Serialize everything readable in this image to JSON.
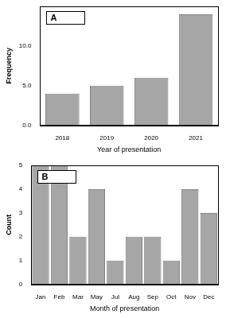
{
  "chart_data": [
    {
      "type": "bar",
      "title": "A",
      "categories": [
        "2018",
        "2019",
        "2020",
        "2021"
      ],
      "values": [
        4,
        5,
        6,
        14
      ],
      "color": "#a6a6a6",
      "x_label": "Year of presentation",
      "y_label": "Frequency",
      "ylim": [
        0,
        15
      ],
      "yticks": [
        {
          "value": 0,
          "label": "0.0"
        },
        {
          "value": 5,
          "label": "5.0"
        },
        {
          "value": 10,
          "label": "10.0"
        }
      ],
      "grid": false
    },
    {
      "type": "bar",
      "title": "B",
      "categories": [
        "Jan",
        "Feb",
        "Mar",
        "May",
        "Jul",
        "Aug",
        "Sep",
        "Oct",
        "Nov",
        "Dec"
      ],
      "values": [
        5,
        5,
        2,
        4,
        1,
        2,
        2,
        1,
        4,
        3
      ],
      "color": "#a6a6a6",
      "x_label": "Month of presentation",
      "y_label": "Count",
      "ylim": [
        0,
        5
      ],
      "yticks": [
        0,
        1,
        2,
        3,
        4,
        5
      ],
      "grid": false
    }
  ]
}
